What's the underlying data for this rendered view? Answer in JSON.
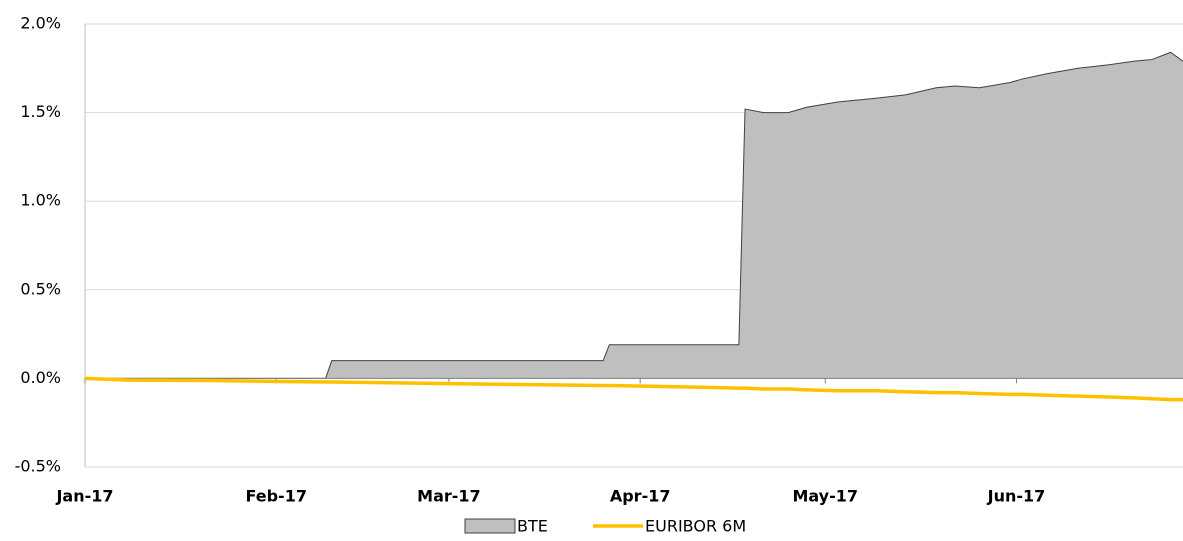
{
  "chart_data": {
    "type": "area-line",
    "x": [
      0,
      7,
      20,
      39,
      40,
      60,
      84,
      85,
      100,
      106,
      107,
      110,
      114,
      117,
      122,
      128,
      133,
      138,
      141,
      145,
      150,
      152,
      156,
      161,
      166,
      170,
      173,
      176,
      178
    ],
    "xlim": [
      0,
      178
    ],
    "xticks": [
      {
        "value": 0,
        "label": "Jan-17"
      },
      {
        "value": 31,
        "label": "Feb-17"
      },
      {
        "value": 59,
        "label": "Mar-17"
      },
      {
        "value": 90,
        "label": "Apr-17"
      },
      {
        "value": 120,
        "label": "May-17"
      },
      {
        "value": 151,
        "label": "Jun-17"
      }
    ],
    "ylim": [
      -0.5,
      2.0
    ],
    "yticks": [
      {
        "value": -0.5,
        "label": "-0.5%"
      },
      {
        "value": 0,
        "label": "0.0%"
      },
      {
        "value": 0.5,
        "label": "0.5%"
      },
      {
        "value": 1.0,
        "label": "1.0%"
      },
      {
        "value": 1.5,
        "label": "1.5%"
      },
      {
        "value": 2.0,
        "label": "2.0%"
      }
    ],
    "grid": true,
    "legend": "bottom",
    "series": [
      {
        "name": "BTE",
        "kind": "area",
        "color": "#bfbfbf",
        "values": [
          0,
          0,
          0,
          0,
          0.1,
          0.1,
          0.1,
          0.19,
          0.19,
          0.19,
          1.52,
          1.5,
          1.5,
          1.53,
          1.56,
          1.58,
          1.6,
          1.64,
          1.65,
          1.64,
          1.67,
          1.69,
          1.72,
          1.75,
          1.77,
          1.79,
          1.8,
          1.84,
          1.79
        ]
      },
      {
        "name": "EURIBOR 6M",
        "kind": "line",
        "color": "#ffc000",
        "values": [
          0,
          -0.01,
          -0.012,
          -0.02,
          -0.02,
          -0.03,
          -0.04,
          -0.04,
          -0.05,
          -0.055,
          -0.055,
          -0.06,
          -0.06,
          -0.065,
          -0.07,
          -0.07,
          -0.075,
          -0.08,
          -0.08,
          -0.085,
          -0.09,
          -0.09,
          -0.095,
          -0.1,
          -0.105,
          -0.11,
          -0.115,
          -0.12,
          -0.12
        ]
      }
    ]
  }
}
